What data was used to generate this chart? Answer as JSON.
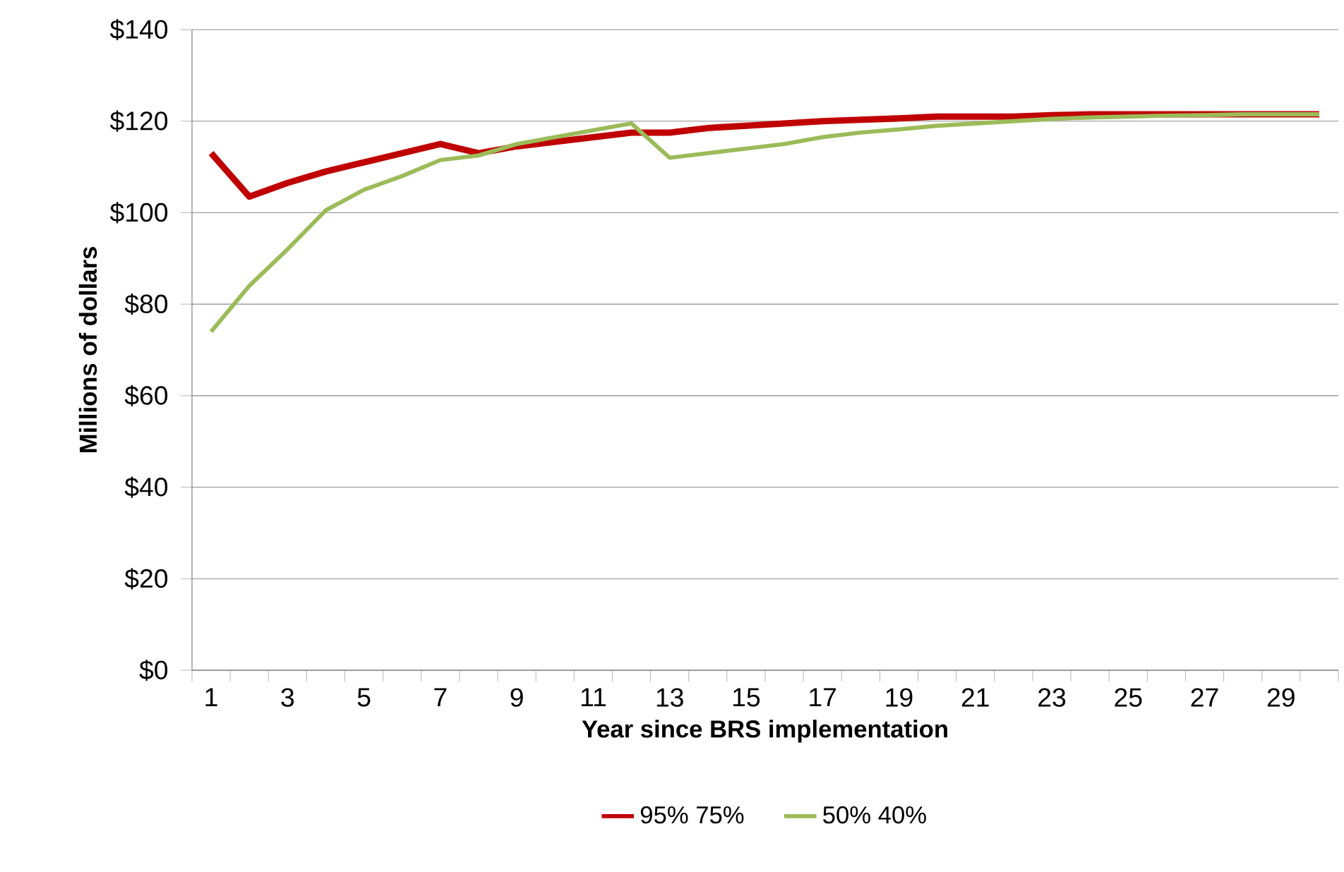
{
  "chart_data": {
    "type": "line",
    "xlabel": "Year since BRS implementation",
    "ylabel": "Millions of dollars",
    "categories": [
      "1",
      null,
      "3",
      null,
      "5",
      null,
      "7",
      null,
      "9",
      null,
      "11",
      null,
      "13",
      null,
      "15",
      null,
      "17",
      null,
      "19",
      null,
      "21",
      null,
      "23",
      null,
      "25",
      null,
      "27",
      null,
      "29",
      null
    ],
    "series": [
      {
        "name": "95% 75%",
        "color": "#c00000",
        "values": [
          113,
          103.5,
          106.5,
          109,
          111,
          113,
          115,
          113,
          114.5,
          115.5,
          116.5,
          117.5,
          117.5,
          118.5,
          119,
          119.5,
          120,
          120.3,
          120.6,
          121,
          121,
          121,
          121.3,
          121.5,
          121.5,
          121.5,
          121.5,
          121.5,
          121.5,
          121.5
        ]
      },
      {
        "name": "50% 40%",
        "color": "#9bbb59",
        "values": [
          74,
          84,
          92,
          100.5,
          105,
          108,
          111.5,
          112.5,
          115,
          116.5,
          118,
          119.5,
          112,
          113,
          114,
          115,
          116.5,
          117.5,
          118.2,
          119,
          119.5,
          120,
          120.5,
          120.8,
          121,
          121.2,
          121.3,
          121.5,
          121.5,
          121.5
        ]
      }
    ],
    "ylim": [
      0,
      140
    ],
    "yticks": [
      {
        "value": 0,
        "label": "$0"
      },
      {
        "value": 20,
        "label": "$20"
      },
      {
        "value": 40,
        "label": "$40"
      },
      {
        "value": 60,
        "label": "$60"
      },
      {
        "value": 80,
        "label": "$80"
      },
      {
        "value": 100,
        "label": "$100"
      },
      {
        "value": 120,
        "label": "$120"
      },
      {
        "value": 140,
        "label": "$140"
      }
    ],
    "grid": "y",
    "legend": "bottom",
    "marker": "none",
    "line_style": "solid"
  }
}
